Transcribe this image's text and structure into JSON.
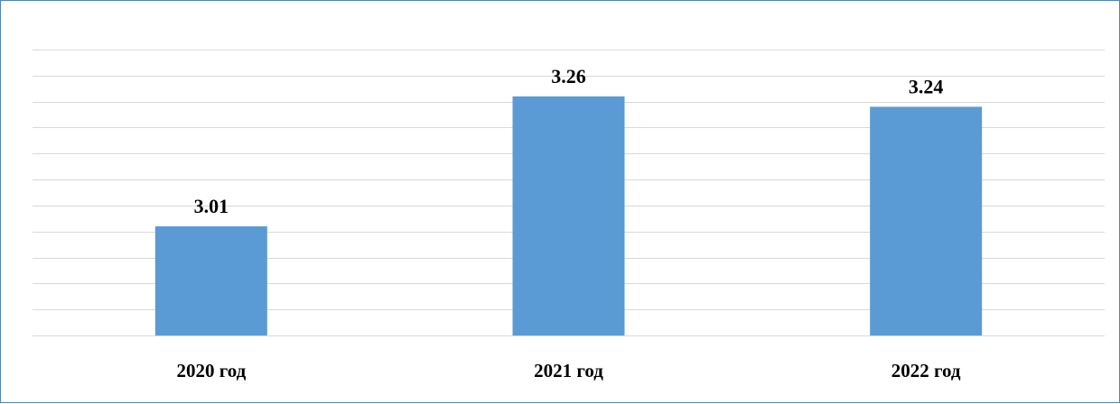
{
  "chart_data": {
    "type": "bar",
    "categories": [
      "2020 год",
      "2021 год",
      "2022 год"
    ],
    "values": [
      3.01,
      3.26,
      3.24
    ],
    "data_labels": [
      "3.01",
      "3.26",
      "3.24"
    ],
    "ylim": [
      2.8,
      3.35
    ],
    "y_gridline_step": 0.05,
    "grid": true,
    "show_y_axis_labels": false,
    "bar_color": "#5b9bd5",
    "gridline_color": "#d9d9d9",
    "border_color": "#4a86c5"
  }
}
